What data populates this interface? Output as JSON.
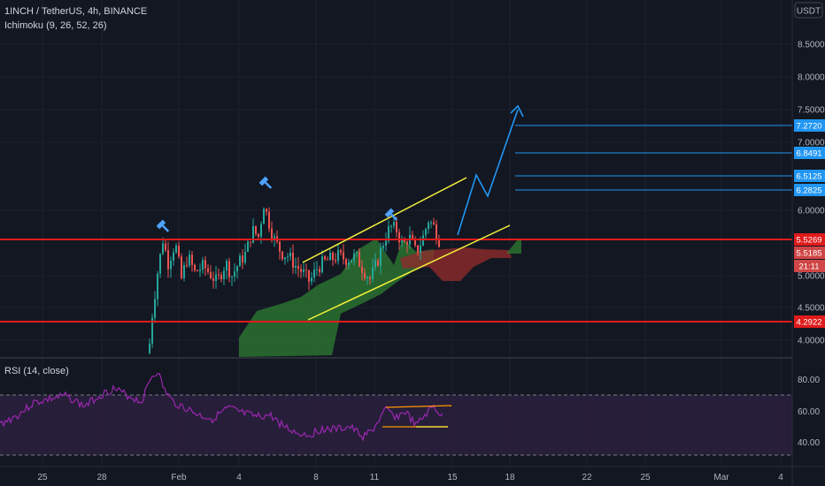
{
  "header": {
    "title": "1INCH / TetherUS, 4h, BINANCE",
    "indicator": "Ichimoku (9, 26, 52, 26)",
    "currency": "USDT"
  },
  "rsi": {
    "label": "RSI (14, close)",
    "ticks": [
      "80.00",
      "60.00",
      "40.00"
    ]
  },
  "colors": {
    "background": "#131722",
    "up_candle": "#26a69a",
    "down_candle": "#ef5350",
    "cloud_bull": "#2e7d32",
    "cloud_bear": "#8e2b2b",
    "horizontal_line": "#e01b1b",
    "channel": "#f5f03b",
    "projection": "#2196f3",
    "rsi_line": "#9c27b0",
    "rsi_band": "#2a1f3d"
  },
  "chart_data": {
    "type": "candlestick",
    "symbol": "1INCH / TetherUS",
    "interval": "4h",
    "exchange": "BINANCE",
    "price_axis": {
      "ticks": [
        8.5,
        8.0,
        7.5,
        7.0,
        6.0,
        5.0,
        4.5,
        4.0
      ],
      "tick_labels": [
        "8.5000",
        "8.0000",
        "7.5000",
        "7.0000",
        "6.0000",
        "5.0000",
        "4.5000",
        "4.0000"
      ],
      "range": [
        3.75,
        8.95
      ]
    },
    "time_axis": {
      "labels": [
        "25",
        "28",
        "Feb",
        "4",
        "8",
        "11",
        "15",
        "18",
        "22",
        "25",
        "Mar",
        "4"
      ]
    },
    "price_tags": [
      {
        "value": "7.2720",
        "kind": "blue"
      },
      {
        "value": "6.8491",
        "kind": "blue"
      },
      {
        "value": "6.5125",
        "kind": "blue"
      },
      {
        "value": "6.2825",
        "kind": "blue"
      },
      {
        "value": "5.5269",
        "kind": "red"
      },
      {
        "value": "5.5185",
        "kind": "red"
      },
      {
        "value": "21:11",
        "kind": "red"
      },
      {
        "value": "4.2922",
        "kind": "red"
      }
    ],
    "horizontal_levels": [
      5.5269,
      4.2922
    ],
    "target_levels": [
      7.272,
      6.8491,
      6.5125,
      6.2825
    ],
    "rsi_levels": [
      70,
      30
    ],
    "rsi_range": [
      25,
      90
    ]
  }
}
